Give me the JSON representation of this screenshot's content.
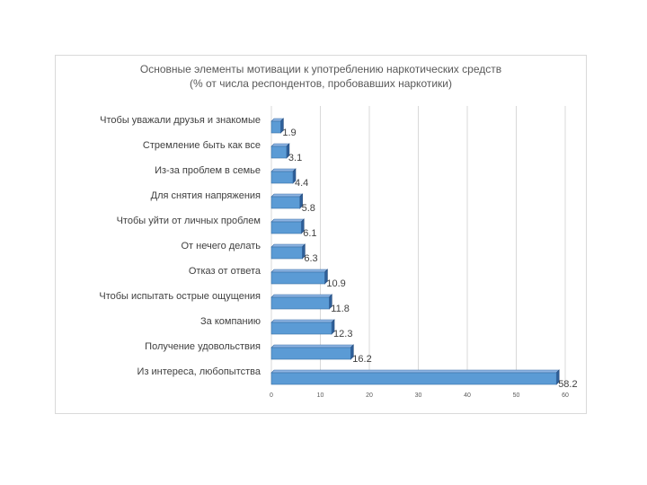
{
  "chart_data": {
    "type": "bar",
    "orientation": "horizontal",
    "title": "Основные элементы мотивации к употреблению наркотических средств",
    "subtitle": "(% от числа респондентов, пробовавших наркотики)",
    "categories": [
      "Чтобы уважали друзья и знакомые",
      "Стремление быть как все",
      "Из-за проблем в семье",
      "Для снятия напряжения",
      "Чтобы уйти от личных проблем",
      "От нечего делать",
      "Отказ от ответа",
      "Чтобы испытать острые ощущения",
      "За компанию",
      "Получение удовольствия",
      "Из интереса, любопытства"
    ],
    "values": [
      1.9,
      3.1,
      4.4,
      5.8,
      6.1,
      6.3,
      10.9,
      11.8,
      12.3,
      16.2,
      58.2
    ],
    "value_labels": [
      "1.9",
      "3.1",
      "4.4",
      "5.8",
      "6.1",
      "6.3",
      "10.9",
      "11.8",
      "12.3",
      "16.2",
      "58.2"
    ],
    "x_ticks": [
      "0",
      "10",
      "20",
      "30",
      "40",
      "50",
      "60"
    ],
    "xlim": [
      0,
      60
    ],
    "grid": true,
    "bar_color": "#5b9bd5",
    "bar_dark_color": "#2e5f99"
  }
}
